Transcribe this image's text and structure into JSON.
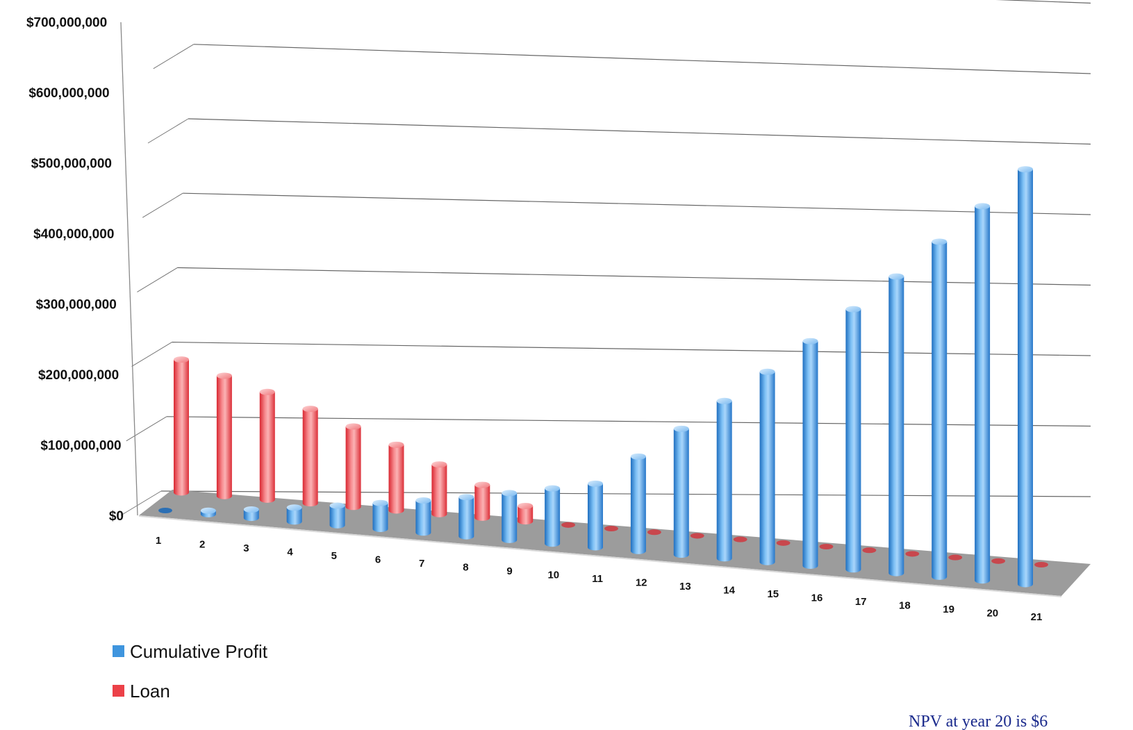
{
  "chart_data": {
    "type": "bar",
    "categories": [
      "1",
      "2",
      "3",
      "4",
      "5",
      "6",
      "7",
      "8",
      "9",
      "10",
      "11",
      "12",
      "13",
      "14",
      "15",
      "16",
      "17",
      "18",
      "19",
      "20",
      "21"
    ],
    "series": [
      {
        "name": "Cumulative Profit",
        "values": [
          0,
          5000000,
          12000000,
          20000000,
          28000000,
          37000000,
          46000000,
          56000000,
          67000000,
          79000000,
          91000000,
          135000000,
          180000000,
          225000000,
          272000000,
          321000000,
          372000000,
          424000000,
          479000000,
          535000000,
          593000000
        ]
      },
      {
        "name": "Loan",
        "values": [
          190000000,
          172000000,
          154000000,
          135000000,
          115000000,
          94000000,
          71000000,
          47000000,
          22000000,
          0,
          0,
          0,
          0,
          0,
          0,
          0,
          0,
          0,
          0,
          0,
          0
        ]
      }
    ],
    "yticks": [
      "$0",
      "$100,000,000",
      "$200,000,000",
      "$300,000,000",
      "$400,000,000",
      "$500,000,000",
      "$600,000,000",
      "$700,000,000"
    ],
    "ylim": [
      0,
      700000000
    ],
    "colors": {
      "Cumulative Profit": "#3f95de",
      "Loan": "#ec4148"
    },
    "grid": true,
    "legend_position": "bottom-left",
    "style": "3d-cylinder"
  },
  "legend": {
    "items": [
      {
        "label": "Cumulative Profit",
        "color": "#3f95de"
      },
      {
        "label": "Loan",
        "color": "#ec4148"
      }
    ]
  },
  "note": {
    "text": "NPV at year 20 is $6"
  }
}
